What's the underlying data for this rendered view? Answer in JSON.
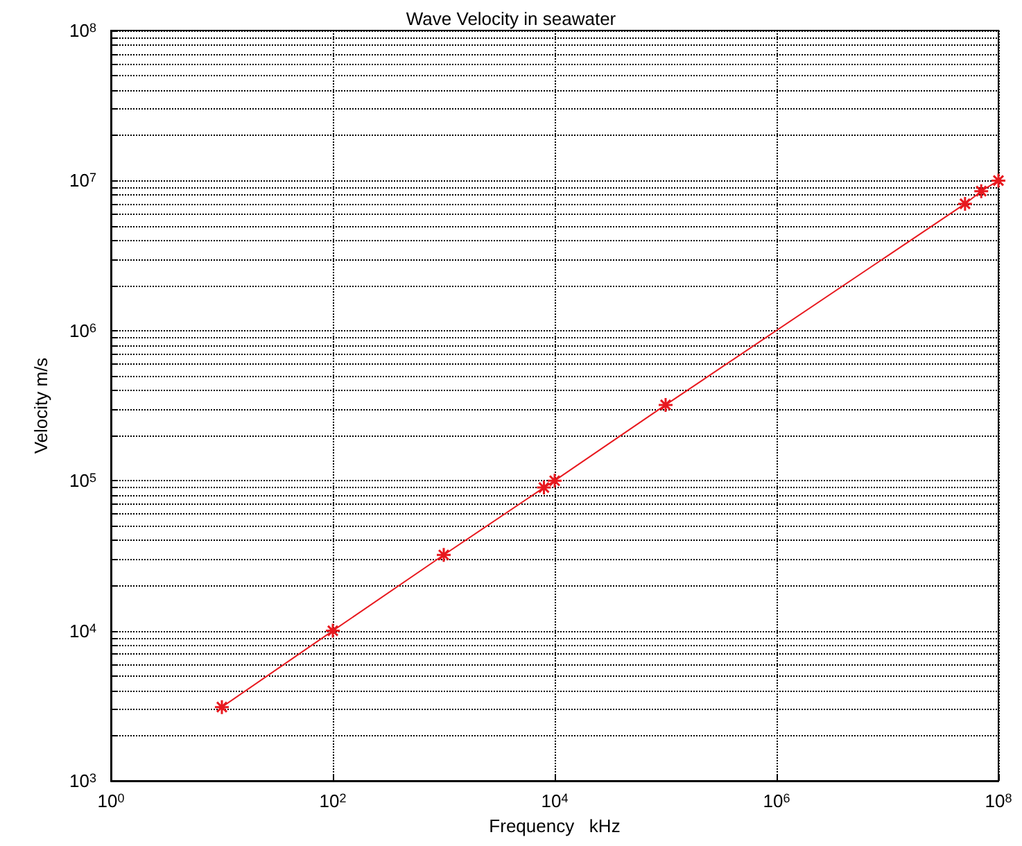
{
  "chart_data": {
    "type": "line",
    "title": "Wave Velocity in seawater",
    "xlabel": "Frequency   kHz",
    "ylabel": "Velocity m/s",
    "log": "xy",
    "grid": true,
    "marker": "cross",
    "line_style": "solid",
    "x": [
      10,
      100,
      1000,
      8000,
      10000,
      100000,
      50000000,
      70000000,
      100000000
    ],
    "series": [
      {
        "color": "#e8191f",
        "values": [
          3100,
          10000,
          32000,
          90000,
          100000,
          320000,
          7000000,
          8500000,
          10000000
        ]
      }
    ],
    "xlim": [
      1,
      100000000
    ],
    "ylim": [
      1000,
      100000000
    ],
    "xticks": [
      {
        "value": 1,
        "label": "10$^{0}$"
      },
      {
        "value": 100,
        "label": "10$^{2}$"
      },
      {
        "value": 10000,
        "label": "10$^{4}$"
      },
      {
        "value": 1000000,
        "label": "10$^{6}$"
      },
      {
        "value": 100000000,
        "label": "10$^{8}$"
      }
    ],
    "yticks": [
      {
        "value": 1000,
        "label": "10$^{3}$"
      },
      {
        "value": 10000,
        "label": "10$^{4}$"
      },
      {
        "value": 100000,
        "label": "10$^{5}$"
      },
      {
        "value": 1000000,
        "label": "10$^{6}$"
      },
      {
        "value": 10000000,
        "label": "10$^{7}$"
      },
      {
        "value": 100000000,
        "label": "10$^{8}$"
      }
    ]
  }
}
